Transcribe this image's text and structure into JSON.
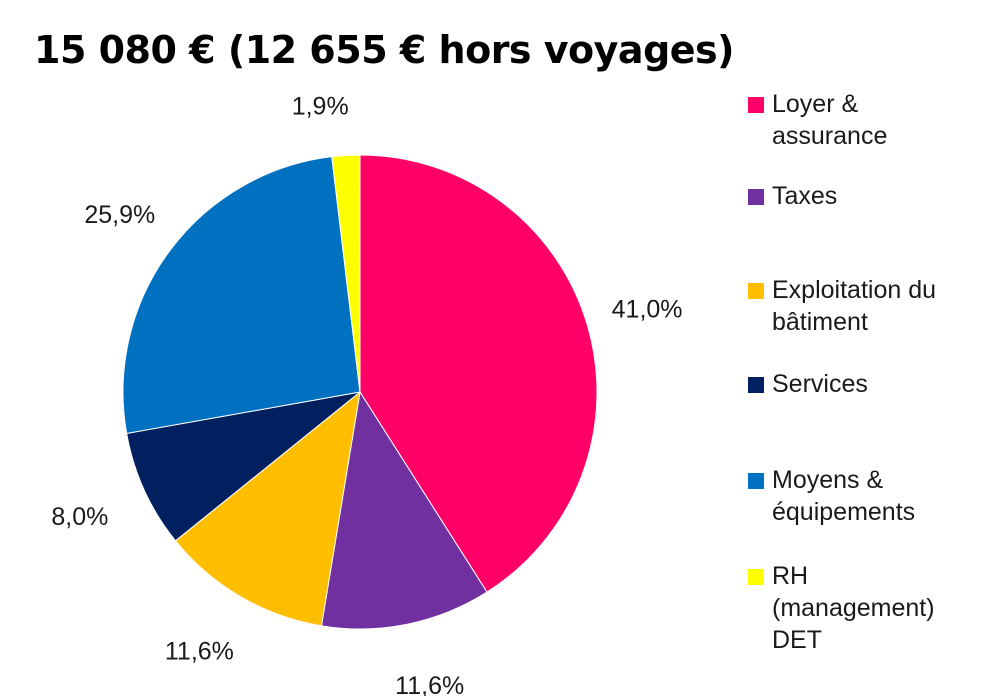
{
  "chart_data": {
    "type": "pie",
    "title": "15 080 € (12 655 € hors voyages)",
    "legend_position": "right",
    "slices": [
      {
        "name": "Loyer & assurance",
        "label": "41,0%",
        "value": 41.0,
        "color": "#FF0066"
      },
      {
        "name": "Taxes",
        "label": "11,6%",
        "value": 11.6,
        "color": "#7030A0"
      },
      {
        "name": "Exploitation du bâtiment",
        "label": "11,6%",
        "value": 11.6,
        "color": "#FFBF00"
      },
      {
        "name": "Services",
        "label": "8,0%",
        "value": 8.0,
        "color": "#002060"
      },
      {
        "name": "Moyens & équipements",
        "label": "25,9%",
        "value": 25.9,
        "color": "#0070C0"
      },
      {
        "name": "RH (management) DET",
        "label": "1,9%",
        "value": 1.9,
        "color": "#FFFF00"
      }
    ]
  },
  "legend": {
    "items": [
      {
        "text": "Loyer &\nassurance",
        "color": "#FF0066"
      },
      {
        "text": "Taxes",
        "color": "#7030A0"
      },
      {
        "text": "Exploitation du\nbâtiment",
        "color": "#FFBF00"
      },
      {
        "text": "Services",
        "color": "#002060"
      },
      {
        "text": "Moyens &\néquipements",
        "color": "#0070C0"
      },
      {
        "text": "RH\n(management)\nDET",
        "color": "#FFFF00"
      }
    ]
  }
}
